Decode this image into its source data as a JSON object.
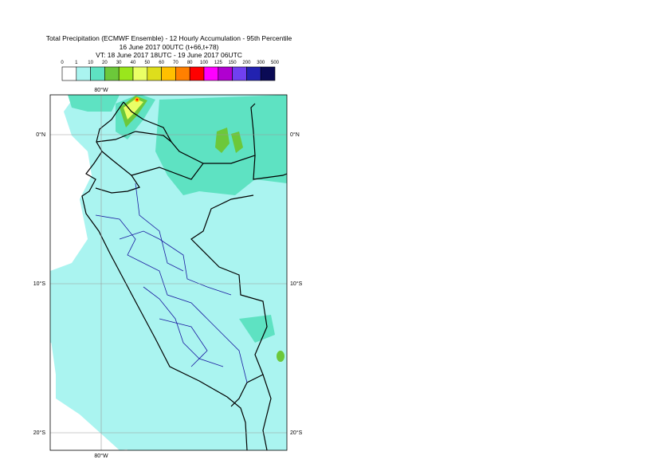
{
  "header": {
    "title": "Total Precipitation (ECMWF Ensemble) - 12 Hourly Accumulation - 95th Percentile",
    "base_time": "16 June 2017 00UTC (t+66,t+78)",
    "valid_time": "VT: 18 June 2017 18UTC - 19 June 2017 06UTC"
  },
  "legend": {
    "thresholds": [
      0,
      1,
      10,
      20,
      30,
      40,
      50,
      60,
      70,
      80,
      100,
      125,
      150,
      200,
      300,
      500
    ],
    "colors": [
      "#ffffff",
      "#aaf4f0",
      "#5ee2c2",
      "#6cc83a",
      "#9ae61c",
      "#eaff66",
      "#dede1c",
      "#ffc000",
      "#ff8000",
      "#ff0000",
      "#ff00ff",
      "#b000d0",
      "#7040f0",
      "#2222b0",
      "#0a0a55"
    ]
  },
  "map": {
    "lat_labels": [
      "0°N",
      "10°S",
      "20°S"
    ],
    "lon_labels": [
      "80°W",
      "80°W"
    ]
  }
}
